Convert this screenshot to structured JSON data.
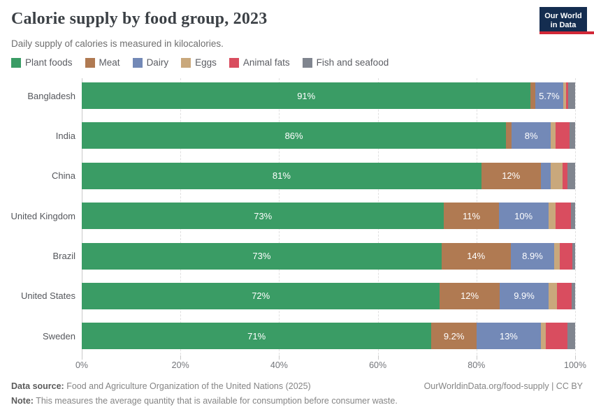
{
  "header": {
    "title": "Calorie supply by food group, 2023",
    "subtitle": "Daily supply of calories is measured in kilocalories.",
    "logo": {
      "line1": "Our World",
      "line2": "in Data",
      "bg": "#142D50",
      "accent": "#D22837"
    }
  },
  "legend": [
    {
      "label": "Plant foods",
      "color": "#3A9C65"
    },
    {
      "label": "Meat",
      "color": "#B07A52"
    },
    {
      "label": "Dairy",
      "color": "#7389B7"
    },
    {
      "label": "Eggs",
      "color": "#C9A87C"
    },
    {
      "label": "Animal fats",
      "color": "#D94D5F"
    },
    {
      "label": "Fish and seafood",
      "color": "#80858F"
    }
  ],
  "chart_data": {
    "type": "bar",
    "orientation": "horizontal",
    "stacked": true,
    "unit": "%",
    "xlim": [
      0,
      100
    ],
    "x_ticks": [
      "0%",
      "20%",
      "40%",
      "60%",
      "80%",
      "100%"
    ],
    "x_tick_values": [
      0,
      20,
      40,
      60,
      80,
      100
    ],
    "grid": "dashed-vertical",
    "legend_position": "top",
    "series_names": [
      "Plant foods",
      "Meat",
      "Dairy",
      "Eggs",
      "Animal fats",
      "Fish and seafood"
    ],
    "categories": [
      "Bangladesh",
      "India",
      "China",
      "United Kingdom",
      "Brazil",
      "United States",
      "Sweden"
    ],
    "rows": [
      {
        "country": "Bangladesh",
        "values": [
          91,
          0.9,
          5.7,
          0.6,
          0.4,
          1.4
        ],
        "labels": [
          "91%",
          "",
          "5.7%",
          "",
          "",
          ""
        ]
      },
      {
        "country": "India",
        "values": [
          86,
          1.1,
          8,
          0.9,
          2.8,
          1.2
        ],
        "labels": [
          "86%",
          "",
          "8%",
          "",
          "",
          ""
        ]
      },
      {
        "country": "China",
        "values": [
          81,
          12,
          2,
          2.5,
          1,
          1.5
        ],
        "labels": [
          "81%",
          "12%",
          "",
          "",
          "",
          ""
        ]
      },
      {
        "country": "United Kingdom",
        "values": [
          73,
          11,
          10,
          1.4,
          3.1,
          0.9
        ],
        "labels": [
          "73%",
          "11%",
          "10%",
          "",
          "",
          ""
        ]
      },
      {
        "country": "Brazil",
        "values": [
          73,
          14,
          8.9,
          1.1,
          2.6,
          0.5
        ],
        "labels": [
          "73%",
          "14%",
          "8.9%",
          "",
          "",
          ""
        ]
      },
      {
        "country": "United States",
        "values": [
          72,
          12,
          9.9,
          1.6,
          3,
          0.7
        ],
        "labels": [
          "72%",
          "12%",
          "9.9%",
          "",
          "",
          ""
        ]
      },
      {
        "country": "Sweden",
        "values": [
          71,
          9.2,
          13,
          1,
          4.5,
          1.5
        ],
        "labels": [
          "71%",
          "9.2%",
          "13%",
          "",
          "",
          ""
        ]
      }
    ]
  },
  "footer": {
    "datasource_label": "Data source:",
    "datasource_text": " Food and Agriculture Organization of the United Nations (2025)",
    "link": "OurWorldinData.org/food-supply | CC BY",
    "note_label": "Note:",
    "note_text": " This measures the average quantity that is available for consumption before consumer waste."
  }
}
